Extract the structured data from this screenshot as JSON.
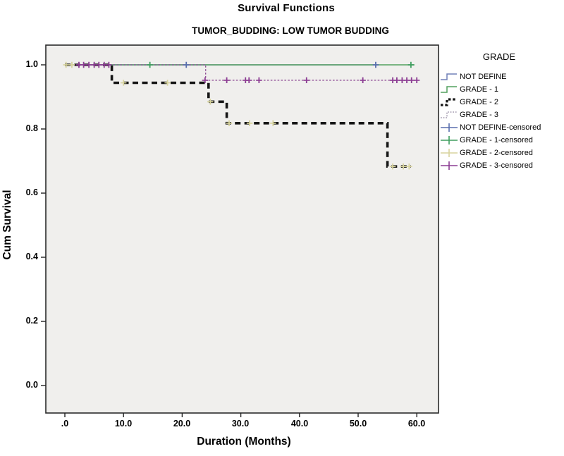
{
  "header": {
    "title": "Survival Functions",
    "subtitle": "TUMOR_BUDDING: LOW TUMOR BUDDING"
  },
  "chart_data": {
    "type": "line",
    "subtype": "kaplan-meier-step",
    "title": "Survival Functions",
    "subtitle": "TUMOR_BUDDING: LOW TUMOR BUDDING",
    "xlabel": "Duration (Months)",
    "ylabel": "Cum Survival",
    "xlim": [
      -3.2,
      63.7
    ],
    "ylim": [
      -0.086,
      1.062
    ],
    "grid": false,
    "plot_bg": "#f0efed",
    "border_color": "#2b2b2b",
    "x_ticks": [
      0,
      10,
      20,
      30,
      40,
      50,
      60
    ],
    "x_tick_labels": [
      ".0",
      "10.0",
      "20.0",
      "30.0",
      "40.0",
      "50.0",
      "60.0"
    ],
    "y_ticks": [
      1.0,
      0.8,
      0.6,
      0.4,
      0.2,
      0.0
    ],
    "y_tick_labels": [
      "1.0",
      "0.8",
      "0.6",
      "0.4",
      "0.2",
      "0.0"
    ],
    "legend_position": "right",
    "series": [
      {
        "name": "NOT DEFINE",
        "color": "#7080b8",
        "censor_color": "#5a6fae",
        "dash": "solid",
        "width": 1.4,
        "steps": [
          [
            0,
            1.0
          ],
          [
            53.5,
            1.0
          ]
        ],
        "censored": [
          [
            20.7,
            1.0
          ],
          [
            53.0,
            1.0
          ]
        ]
      },
      {
        "name": "GRADE - 1",
        "color": "#52a05e",
        "censor_color": "#3f9e5f",
        "dash": "solid",
        "width": 1.4,
        "steps": [
          [
            0,
            1.0
          ],
          [
            59.6,
            1.0
          ]
        ],
        "censored": [
          [
            14.5,
            1.0
          ],
          [
            59.0,
            1.0
          ]
        ]
      },
      {
        "name": "GRADE - 3",
        "color": "#8d4a94",
        "censor_color": "#8c3d93",
        "dash": "dotted",
        "width": 1.3,
        "steps": [
          [
            0,
            1.0
          ],
          [
            24,
            1.0
          ],
          [
            24,
            0.952
          ],
          [
            60.3,
            0.952
          ]
        ],
        "censored": [
          [
            2.4,
            1.0
          ],
          [
            3.2,
            1.0
          ],
          [
            4.1,
            1.0
          ],
          [
            5.0,
            1.0
          ],
          [
            5.8,
            1.0
          ],
          [
            6.7,
            1.0
          ],
          [
            7.5,
            1.0
          ],
          [
            23.9,
            0.952
          ],
          [
            27.6,
            0.952
          ],
          [
            30.8,
            0.952
          ],
          [
            31.4,
            0.952
          ],
          [
            33.1,
            0.952
          ],
          [
            41.2,
            0.952
          ],
          [
            50.8,
            0.952
          ],
          [
            55.9,
            0.952
          ],
          [
            56.6,
            0.952
          ],
          [
            57.5,
            0.952
          ],
          [
            58.3,
            0.952
          ],
          [
            59.1,
            0.952
          ],
          [
            60.0,
            0.952
          ]
        ]
      },
      {
        "name": "GRADE - 2",
        "color": "#161616",
        "censor_color": "#d8d49e",
        "dash": "dashed",
        "width": 3.6,
        "steps": [
          [
            0,
            1.0
          ],
          [
            8,
            1.0
          ],
          [
            8,
            0.944
          ],
          [
            24.5,
            0.944
          ],
          [
            24.5,
            0.885
          ],
          [
            27.6,
            0.885
          ],
          [
            27.6,
            0.818
          ],
          [
            55,
            0.818
          ],
          [
            55,
            0.683
          ],
          [
            59,
            0.683
          ]
        ],
        "censored": [
          [
            0.2,
            1.0
          ],
          [
            1.2,
            1.0
          ],
          [
            10.0,
            0.944
          ],
          [
            17.5,
            0.944
          ],
          [
            24.8,
            0.885
          ],
          [
            28.0,
            0.818
          ],
          [
            31.5,
            0.818
          ],
          [
            35.5,
            0.818
          ],
          [
            55.9,
            0.683
          ],
          [
            57.7,
            0.683
          ],
          [
            58.7,
            0.683
          ]
        ]
      }
    ]
  },
  "legend": {
    "title": "GRADE",
    "entries": [
      {
        "label": "NOT DEFINE",
        "glyph": "step",
        "color": "#7080b8"
      },
      {
        "label": "GRADE - 1",
        "glyph": "step",
        "color": "#52a05e"
      },
      {
        "label": "GRADE - 2",
        "glyph": "step",
        "color": "#161616"
      },
      {
        "label": "GRADE - 3",
        "glyph": "step",
        "color": "#9288a0"
      },
      {
        "label": "NOT DEFINE-censored",
        "glyph": "censor",
        "color": "#5a6fae"
      },
      {
        "label": "GRADE - 1-censored",
        "glyph": "censor",
        "color": "#3f9e5f"
      },
      {
        "label": "GRADE - 2-censored",
        "glyph": "censor",
        "color": "#d8d49e"
      },
      {
        "label": "GRADE - 3-censored",
        "glyph": "censor",
        "color": "#8c3d93"
      }
    ]
  }
}
